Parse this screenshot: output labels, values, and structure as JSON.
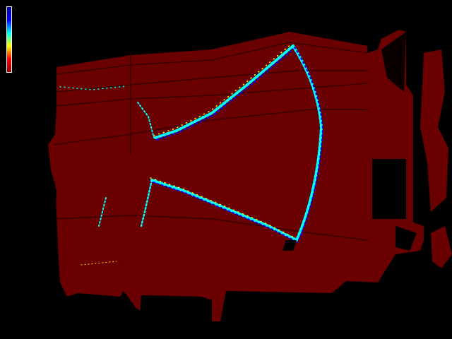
{
  "image": {
    "kind": "depth/heatmap-style rendering of building facade",
    "background_color": "#000000",
    "surface_color": "#6b0000",
    "colormap": [
      "#00008f",
      "#0000ff",
      "#00ffff",
      "#ffff00",
      "#ff0000",
      "#8f0000"
    ]
  }
}
